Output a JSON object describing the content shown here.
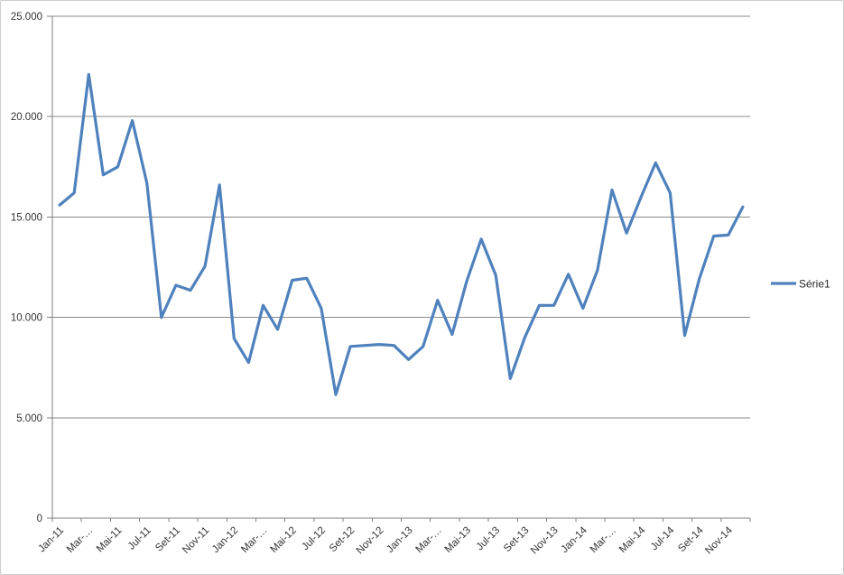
{
  "chart_data": {
    "type": "line",
    "title": "",
    "legend": {
      "position": "right-middle",
      "entries": [
        {
          "label": "Série1",
          "color": "#4f81bd"
        }
      ]
    },
    "y_axis": {
      "min": 0,
      "max": 25000,
      "step": 5000,
      "tick_labels": [
        "0",
        "5.000",
        "10.000",
        "15.000",
        "20.000",
        "25.000"
      ]
    },
    "x_axis": {
      "tick_labels": [
        "Jan-11",
        "Mar-…",
        "Mai-11",
        "Jul-11",
        "Set-11",
        "Nov-11",
        "Jan-12",
        "Mar-…",
        "Mai-12",
        "Jul-12",
        "Set-12",
        "Nov-12",
        "Jan-13",
        "Mar-…",
        "Mai-13",
        "Jul-13",
        "Set-13",
        "Nov-13",
        "Jan-14",
        "Mar-…",
        "Mai-14",
        "Jul-14",
        "Set-14",
        "Nov-14"
      ],
      "points_per_tick": 2,
      "label_rotation_deg": 45
    },
    "grid": "horizontal",
    "series": [
      {
        "name": "Série1",
        "color": "#4f81bd",
        "values": [
          15600,
          16200,
          22100,
          17100,
          17500,
          19800,
          16700,
          10000,
          11600,
          11350,
          12550,
          16600,
          8950,
          7750,
          10600,
          9400,
          11850,
          11950,
          10450,
          6150,
          8550,
          8600,
          8650,
          8600,
          7900,
          8550,
          10850,
          9150,
          11800,
          13900,
          12100,
          6950,
          9000,
          10600,
          10600,
          12150,
          10450,
          12350,
          16350,
          14200,
          16000,
          17700,
          16200,
          9100,
          11900,
          14050,
          14100,
          15500
        ]
      }
    ],
    "colors": {
      "gridline": "#898989",
      "axis": "#7f7f7f",
      "tick_text": "#333333",
      "legend_text": "#262626",
      "background": "#ffffff",
      "frame_border": "#cdcdcd"
    }
  }
}
